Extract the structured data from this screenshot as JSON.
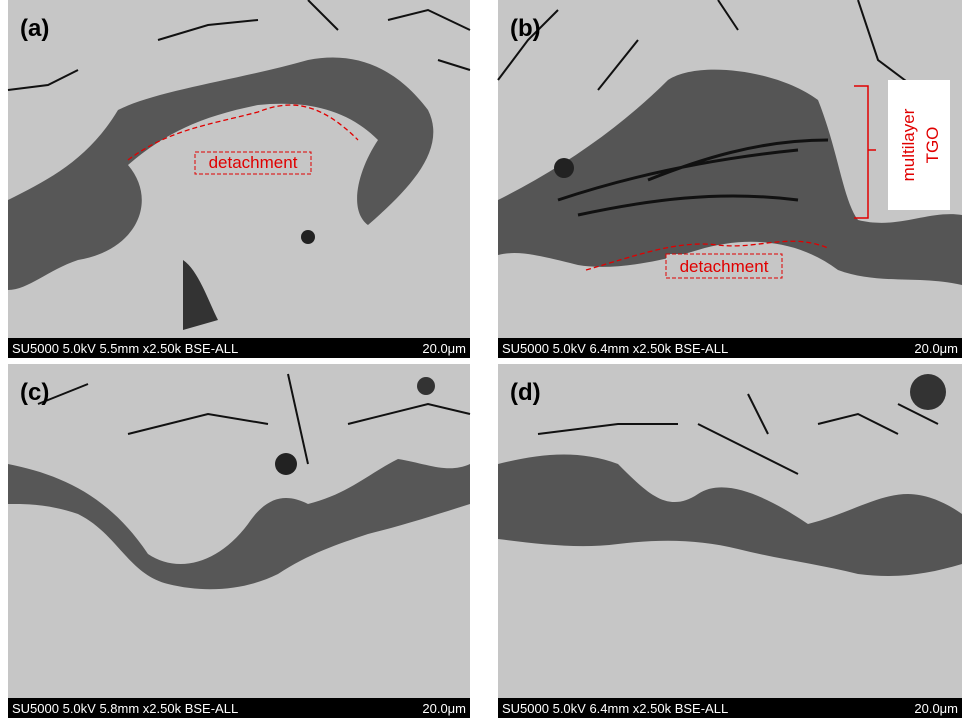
{
  "panels": [
    {
      "label": "(a)",
      "info": "SU5000 5.0kV 5.5mm x2.50k BSE-ALL",
      "scale": "20.0μm",
      "annotations": [
        "detachment"
      ]
    },
    {
      "label": "(b)",
      "info": "SU5000 5.0kV 6.4mm x2.50k BSE-ALL",
      "scale": "20.0μm",
      "annotations": [
        "detachment",
        "multilayer",
        "TGO"
      ]
    },
    {
      "label": "(c)",
      "info": "SU5000 5.0kV 5.8mm x2.50k BSE-ALL",
      "scale": "20.0μm",
      "annotations": []
    },
    {
      "label": "(d)",
      "info": "SU5000 5.0kV 6.4mm x2.50k BSE-ALL",
      "scale": "20.0μm",
      "annotations": []
    }
  ]
}
